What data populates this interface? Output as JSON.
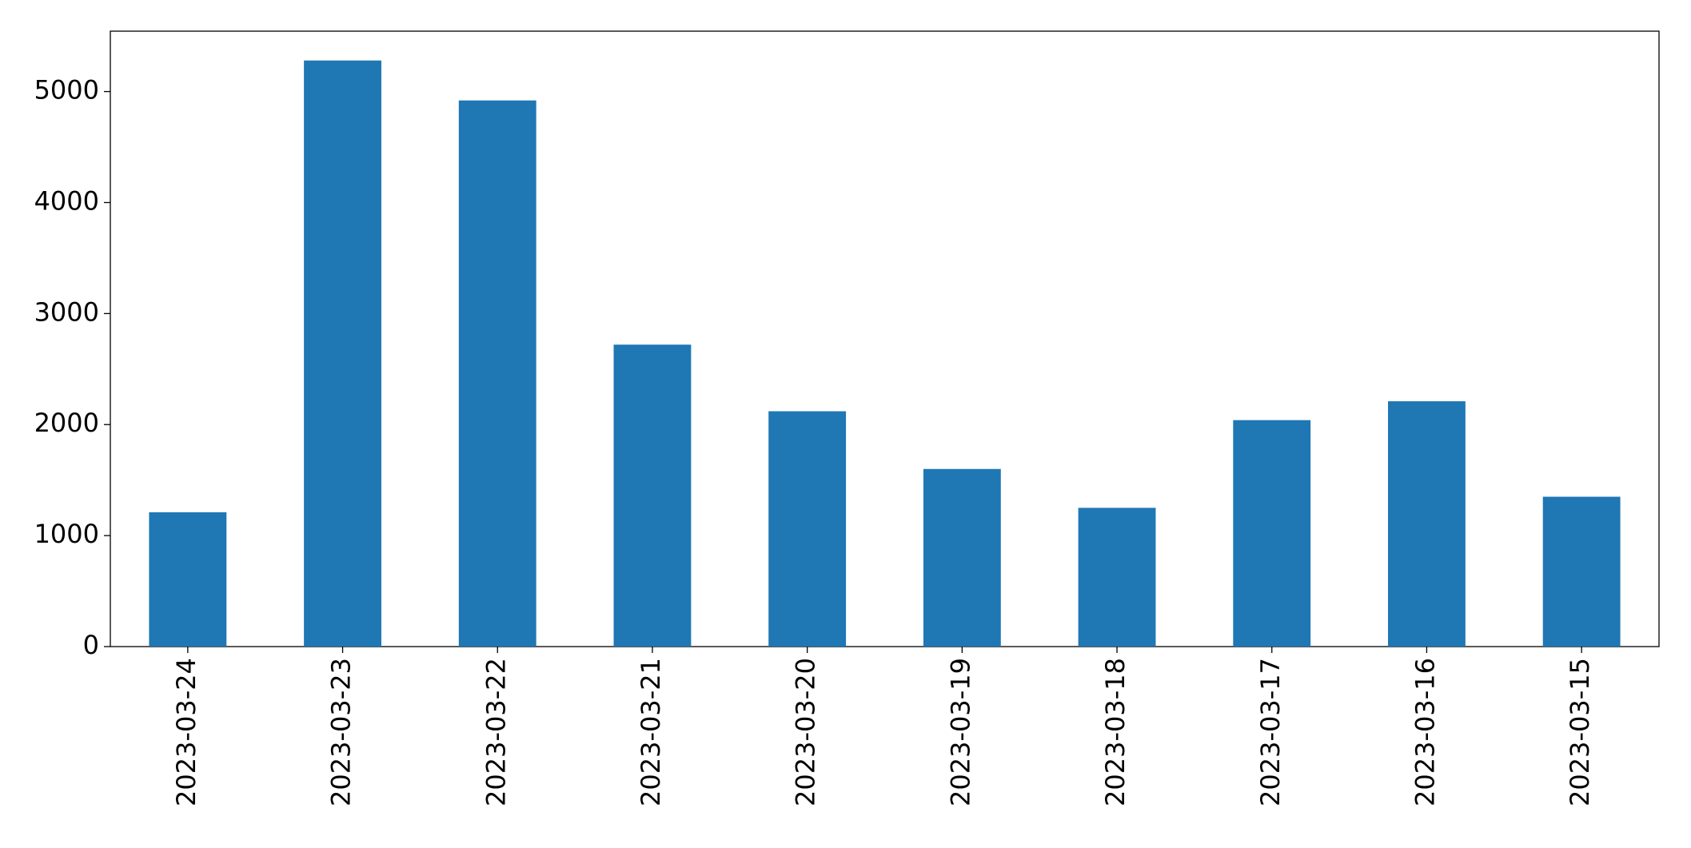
{
  "chart_data": {
    "type": "bar",
    "categories": [
      "2023-03-24",
      "2023-03-23",
      "2023-03-22",
      "2023-03-21",
      "2023-03-20",
      "2023-03-19",
      "2023-03-18",
      "2023-03-17",
      "2023-03-16",
      "2023-03-15"
    ],
    "values": [
      1210,
      5280,
      4920,
      2720,
      2120,
      1600,
      1250,
      2040,
      2210,
      1350
    ],
    "color": "#1f77b4",
    "ylim": [
      0,
      5544
    ],
    "yticks": [
      0,
      1000,
      2000,
      3000,
      4000,
      5000
    ],
    "grid": false
  }
}
